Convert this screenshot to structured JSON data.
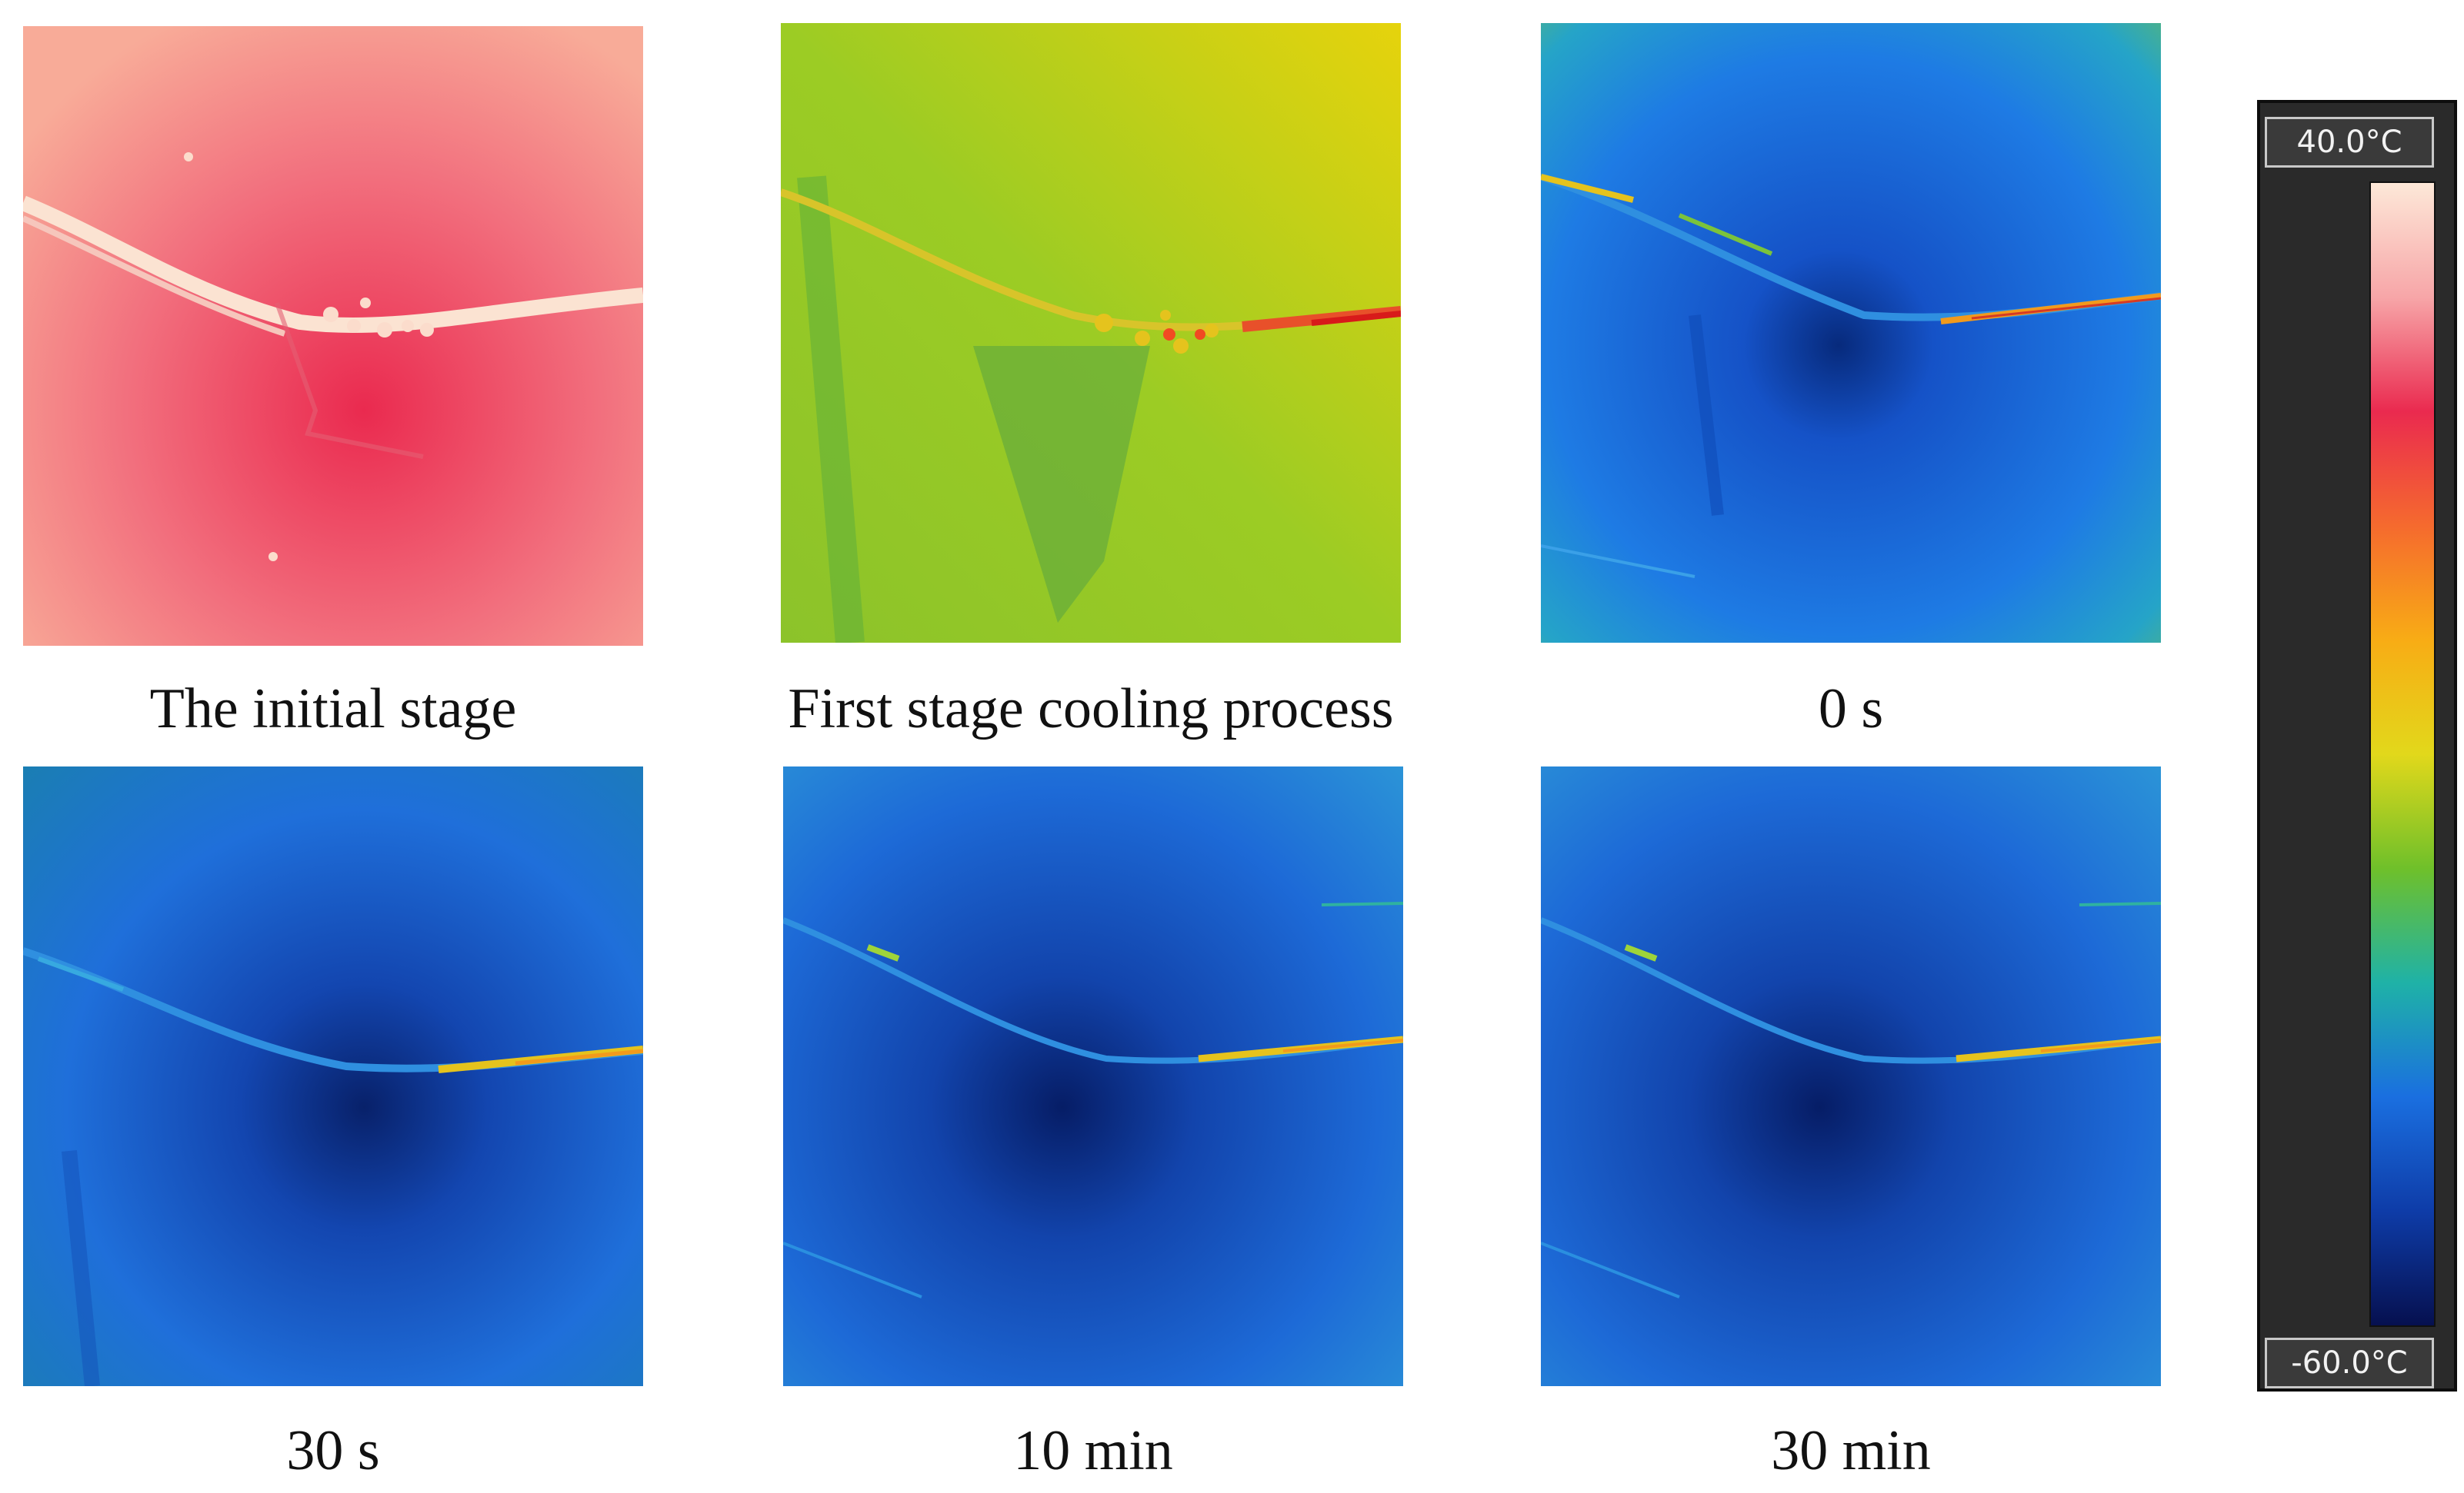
{
  "captions": {
    "p1": "The initial stage",
    "p2": "First stage cooling process",
    "p3": "0 s",
    "p4": "30 s",
    "p5": "10 min",
    "p6": "30 min"
  },
  "scale": {
    "max_label": "40.0°C",
    "min_label": "-60.0°C",
    "colors_top_to_bottom": [
      "#fde8d8",
      "#f7a6a8",
      "#ea2a4f",
      "#f56a2e",
      "#f8ac15",
      "#e2d81b",
      "#6fc02a",
      "#1fb2a7",
      "#1a6fe0",
      "#0e3ca8",
      "#06104f"
    ]
  },
  "panels": {
    "p1": {
      "base": "#f5928f",
      "center": "#ea2a4f",
      "edge": "#f7a394"
    },
    "p2": {
      "base": "#a8cf1c",
      "center": "#6dba31",
      "edge": "#e3d10e"
    },
    "p3": {
      "base": "#1f7ae3",
      "center": "#072a7c",
      "edge": "#7ec33a"
    },
    "p4": {
      "base": "#1f6fda",
      "center": "#08216a",
      "edge": "#1a7fb0"
    },
    "p5": {
      "base": "#1d6ad7",
      "center": "#061d66",
      "edge": "#2f9fd7"
    },
    "p6": {
      "base": "#1d6ad7",
      "center": "#061d66",
      "edge": "#2f9fd7"
    }
  }
}
